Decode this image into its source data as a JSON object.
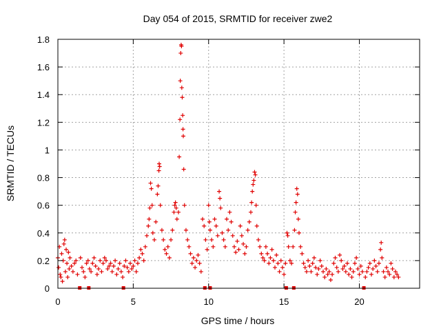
{
  "chart_data": {
    "type": "scatter",
    "title": "Day 054 of 2015, SRMTID for receiver zwe2",
    "xlabel": "GPS time / hours",
    "ylabel": "SRMTID / TECUs",
    "xlim": [
      0,
      24
    ],
    "ylim": [
      0,
      1.8
    ],
    "x_ticks": [
      0,
      5,
      10,
      15,
      20
    ],
    "x_tick_labels": [
      "0",
      "5",
      "10",
      "15",
      "20"
    ],
    "y_ticks": [
      0,
      0.2,
      0.4,
      0.6,
      0.8,
      1.0,
      1.2,
      1.4,
      1.6,
      1.8
    ],
    "y_tick_labels": [
      "0",
      "0.2",
      "0.4",
      "0.6",
      "0.8",
      "1",
      "1.2",
      "1.4",
      "1.6",
      "1.8"
    ],
    "grid": true,
    "marker": "plus",
    "color": "#e00000",
    "series": [
      {
        "name": "SRMTID",
        "points": [
          [
            0.0,
            0.22
          ],
          [
            0.05,
            0.15
          ],
          [
            0.1,
            0.3
          ],
          [
            0.15,
            0.1
          ],
          [
            0.2,
            0.08
          ],
          [
            0.25,
            0.25
          ],
          [
            0.3,
            0.05
          ],
          [
            0.35,
            0.2
          ],
          [
            0.4,
            0.32
          ],
          [
            0.45,
            0.35
          ],
          [
            0.5,
            0.12
          ],
          [
            0.55,
            0.28
          ],
          [
            0.6,
            0.18
          ],
          [
            0.65,
            0.08
          ],
          [
            0.7,
            0.26
          ],
          [
            0.75,
            0.14
          ],
          [
            0.8,
            0.22
          ],
          [
            0.9,
            0.16
          ],
          [
            1.0,
            0.12
          ],
          [
            1.1,
            0.18
          ],
          [
            1.2,
            0.2
          ],
          [
            1.3,
            0.1
          ],
          [
            1.5,
            0.22
          ],
          [
            1.6,
            0.15
          ],
          [
            1.7,
            0.12
          ],
          [
            1.8,
            0.08
          ],
          [
            1.9,
            0.18
          ],
          [
            2.0,
            0.2
          ],
          [
            2.1,
            0.14
          ],
          [
            2.2,
            0.12
          ],
          [
            2.3,
            0.18
          ],
          [
            2.4,
            0.22
          ],
          [
            2.5,
            0.16
          ],
          [
            2.6,
            0.1
          ],
          [
            2.7,
            0.14
          ],
          [
            2.8,
            0.2
          ],
          [
            2.9,
            0.12
          ],
          [
            3.0,
            0.18
          ],
          [
            3.1,
            0.22
          ],
          [
            3.2,
            0.2
          ],
          [
            3.3,
            0.14
          ],
          [
            3.4,
            0.16
          ],
          [
            3.5,
            0.18
          ],
          [
            3.6,
            0.12
          ],
          [
            3.7,
            0.16
          ],
          [
            3.8,
            0.2
          ],
          [
            3.9,
            0.1
          ],
          [
            4.0,
            0.14
          ],
          [
            4.1,
            0.18
          ],
          [
            4.2,
            0.12
          ],
          [
            4.3,
            0.08
          ],
          [
            4.4,
            0.16
          ],
          [
            4.5,
            0.2
          ],
          [
            4.6,
            0.15
          ],
          [
            4.7,
            0.12
          ],
          [
            4.8,
            0.18
          ],
          [
            4.9,
            0.14
          ],
          [
            5.0,
            0.16
          ],
          [
            5.1,
            0.2
          ],
          [
            5.2,
            0.12
          ],
          [
            5.3,
            0.18
          ],
          [
            5.4,
            0.22
          ],
          [
            5.5,
            0.28
          ],
          [
            5.6,
            0.25
          ],
          [
            5.7,
            0.2
          ],
          [
            5.8,
            0.3
          ],
          [
            5.9,
            0.38
          ],
          [
            6.0,
            0.45
          ],
          [
            6.05,
            0.5
          ],
          [
            6.1,
            0.58
          ],
          [
            6.15,
            0.76
          ],
          [
            6.2,
            0.72
          ],
          [
            6.25,
            0.6
          ],
          [
            6.3,
            0.4
          ],
          [
            6.4,
            0.35
          ],
          [
            6.5,
            0.48
          ],
          [
            6.6,
            0.68
          ],
          [
            6.65,
            0.74
          ],
          [
            6.7,
            0.85
          ],
          [
            6.72,
            0.9
          ],
          [
            6.75,
            0.88
          ],
          [
            6.8,
            0.6
          ],
          [
            6.9,
            0.42
          ],
          [
            7.0,
            0.35
          ],
          [
            7.1,
            0.28
          ],
          [
            7.2,
            0.25
          ],
          [
            7.3,
            0.3
          ],
          [
            7.4,
            0.22
          ],
          [
            7.5,
            0.35
          ],
          [
            7.6,
            0.42
          ],
          [
            7.7,
            0.55
          ],
          [
            7.75,
            0.6
          ],
          [
            7.8,
            0.62
          ],
          [
            7.85,
            0.58
          ],
          [
            7.9,
            0.5
          ],
          [
            8.0,
            0.55
          ],
          [
            8.05,
            0.95
          ],
          [
            8.1,
            1.22
          ],
          [
            8.12,
            1.5
          ],
          [
            8.15,
            1.7
          ],
          [
            8.18,
            1.76
          ],
          [
            8.2,
            1.75
          ],
          [
            8.22,
            1.45
          ],
          [
            8.25,
            1.38
          ],
          [
            8.28,
            1.25
          ],
          [
            8.3,
            1.15
          ],
          [
            8.32,
            1.1
          ],
          [
            8.35,
            0.86
          ],
          [
            8.4,
            0.6
          ],
          [
            8.5,
            0.42
          ],
          [
            8.6,
            0.35
          ],
          [
            8.7,
            0.3
          ],
          [
            8.8,
            0.25
          ],
          [
            8.9,
            0.18
          ],
          [
            9.0,
            0.22
          ],
          [
            9.1,
            0.15
          ],
          [
            9.2,
            0.2
          ],
          [
            9.3,
            0.24
          ],
          [
            9.4,
            0.18
          ],
          [
            9.5,
            0.12
          ],
          [
            9.6,
            0.5
          ],
          [
            9.7,
            0.45
          ],
          [
            9.8,
            0.35
          ],
          [
            9.9,
            0.28
          ],
          [
            10.0,
            0.6
          ],
          [
            10.05,
            0.48
          ],
          [
            10.1,
            0.42
          ],
          [
            10.2,
            0.35
          ],
          [
            10.3,
            0.3
          ],
          [
            10.4,
            0.5
          ],
          [
            10.5,
            0.45
          ],
          [
            10.6,
            0.38
          ],
          [
            10.7,
            0.7
          ],
          [
            10.75,
            0.65
          ],
          [
            10.8,
            0.58
          ],
          [
            10.9,
            0.4
          ],
          [
            11.0,
            0.35
          ],
          [
            11.1,
            0.3
          ],
          [
            11.2,
            0.5
          ],
          [
            11.3,
            0.42
          ],
          [
            11.4,
            0.55
          ],
          [
            11.5,
            0.48
          ],
          [
            11.6,
            0.38
          ],
          [
            11.7,
            0.3
          ],
          [
            11.8,
            0.26
          ],
          [
            11.9,
            0.34
          ],
          [
            12.0,
            0.28
          ],
          [
            12.1,
            0.45
          ],
          [
            12.2,
            0.38
          ],
          [
            12.3,
            0.32
          ],
          [
            12.4,
            0.25
          ],
          [
            12.5,
            0.3
          ],
          [
            12.6,
            0.42
          ],
          [
            12.7,
            0.48
          ],
          [
            12.8,
            0.55
          ],
          [
            12.85,
            0.62
          ],
          [
            12.9,
            0.7
          ],
          [
            12.95,
            0.75
          ],
          [
            13.0,
            0.78
          ],
          [
            13.05,
            0.84
          ],
          [
            13.1,
            0.82
          ],
          [
            13.15,
            0.6
          ],
          [
            13.2,
            0.45
          ],
          [
            13.3,
            0.35
          ],
          [
            13.4,
            0.3
          ],
          [
            13.5,
            0.25
          ],
          [
            13.6,
            0.22
          ],
          [
            13.7,
            0.2
          ],
          [
            13.8,
            0.3
          ],
          [
            13.9,
            0.25
          ],
          [
            14.0,
            0.18
          ],
          [
            14.1,
            0.22
          ],
          [
            14.2,
            0.28
          ],
          [
            14.3,
            0.2
          ],
          [
            14.4,
            0.15
          ],
          [
            14.5,
            0.24
          ],
          [
            14.6,
            0.18
          ],
          [
            14.7,
            0.12
          ],
          [
            14.8,
            0.2
          ],
          [
            14.9,
            0.15
          ],
          [
            15.0,
            0.1
          ],
          [
            15.1,
            0.18
          ],
          [
            15.2,
            0.4
          ],
          [
            15.25,
            0.38
          ],
          [
            15.3,
            0.3
          ],
          [
            15.4,
            0.2
          ],
          [
            15.5,
            0.18
          ],
          [
            15.6,
            0.3
          ],
          [
            15.7,
            0.42
          ],
          [
            15.75,
            0.55
          ],
          [
            15.8,
            0.62
          ],
          [
            15.85,
            0.72
          ],
          [
            15.9,
            0.68
          ],
          [
            15.95,
            0.5
          ],
          [
            16.0,
            0.4
          ],
          [
            16.1,
            0.3
          ],
          [
            16.2,
            0.25
          ],
          [
            16.3,
            0.18
          ],
          [
            16.4,
            0.15
          ],
          [
            16.5,
            0.12
          ],
          [
            16.6,
            0.2
          ],
          [
            16.7,
            0.16
          ],
          [
            16.8,
            0.12
          ],
          [
            16.9,
            0.18
          ],
          [
            17.0,
            0.22
          ],
          [
            17.1,
            0.15
          ],
          [
            17.2,
            0.1
          ],
          [
            17.3,
            0.14
          ],
          [
            17.4,
            0.2
          ],
          [
            17.5,
            0.16
          ],
          [
            17.6,
            0.12
          ],
          [
            17.7,
            0.08
          ],
          [
            17.8,
            0.14
          ],
          [
            17.9,
            0.1
          ],
          [
            18.0,
            0.12
          ],
          [
            18.1,
            0.06
          ],
          [
            18.2,
            0.1
          ],
          [
            18.3,
            0.18
          ],
          [
            18.4,
            0.22
          ],
          [
            18.5,
            0.15
          ],
          [
            18.6,
            0.12
          ],
          [
            18.7,
            0.24
          ],
          [
            18.8,
            0.2
          ],
          [
            18.9,
            0.14
          ],
          [
            19.0,
            0.16
          ],
          [
            19.1,
            0.12
          ],
          [
            19.2,
            0.18
          ],
          [
            19.3,
            0.1
          ],
          [
            19.4,
            0.14
          ],
          [
            19.5,
            0.08
          ],
          [
            19.6,
            0.12
          ],
          [
            19.7,
            0.18
          ],
          [
            19.8,
            0.22
          ],
          [
            19.9,
            0.14
          ],
          [
            20.0,
            0.1
          ],
          [
            20.1,
            0.16
          ],
          [
            20.2,
            0.12
          ],
          [
            20.4,
            0.08
          ],
          [
            20.5,
            0.12
          ],
          [
            20.6,
            0.15
          ],
          [
            20.7,
            0.18
          ],
          [
            20.8,
            0.1
          ],
          [
            20.9,
            0.14
          ],
          [
            21.0,
            0.2
          ],
          [
            21.1,
            0.16
          ],
          [
            21.2,
            0.12
          ],
          [
            21.3,
            0.18
          ],
          [
            21.4,
            0.28
          ],
          [
            21.45,
            0.33
          ],
          [
            21.5,
            0.22
          ],
          [
            21.6,
            0.12
          ],
          [
            21.7,
            0.08
          ],
          [
            21.8,
            0.15
          ],
          [
            21.9,
            0.12
          ],
          [
            22.0,
            0.1
          ],
          [
            22.1,
            0.18
          ],
          [
            22.2,
            0.14
          ],
          [
            22.3,
            0.08
          ],
          [
            22.4,
            0.12
          ],
          [
            22.5,
            0.1
          ],
          [
            22.6,
            0.08
          ]
        ]
      }
    ],
    "gap_markers_x": [
      1.45,
      2.05,
      4.35,
      9.75,
      10.1,
      15.15,
      15.65,
      20.3
    ]
  }
}
